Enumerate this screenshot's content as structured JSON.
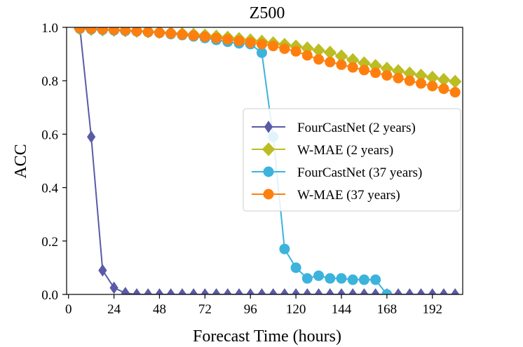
{
  "chart_data": {
    "type": "line",
    "title": "Z500",
    "xlabel": "Forecast Time (hours)",
    "ylabel": "ACC",
    "xlim": [
      -1,
      208
    ],
    "ylim": [
      0.0,
      1.0
    ],
    "xticks": [
      0,
      24,
      48,
      72,
      96,
      120,
      144,
      168,
      192
    ],
    "yticks": [
      0.0,
      0.2,
      0.4,
      0.6,
      0.8,
      1.0
    ],
    "xtick_labels": [
      "0",
      "24",
      "48",
      "72",
      "96",
      "120",
      "144",
      "168",
      "192"
    ],
    "ytick_labels": [
      "0.0",
      "0.2",
      "0.4",
      "0.6",
      "0.8",
      "1.0"
    ],
    "x": [
      6,
      12,
      18,
      24,
      30,
      36,
      42,
      48,
      54,
      60,
      66,
      72,
      78,
      84,
      90,
      96,
      102,
      108,
      114,
      120,
      126,
      132,
      138,
      144,
      150,
      156,
      162,
      168,
      174,
      180,
      186,
      192,
      198,
      204
    ],
    "legend_position": "center-right",
    "series": [
      {
        "name": "FourCastNet (2 years)",
        "color": "#5a5aa6",
        "marker": "diamond-thin",
        "values": [
          1.0,
          0.59,
          0.09,
          0.025,
          0.005,
          0.0,
          0.0,
          0.0,
          0.0,
          0.0,
          0.0,
          0.0,
          0.0,
          0.0,
          0.0,
          0.0,
          0.0,
          0.0,
          0.0,
          0.0,
          0.0,
          0.0,
          0.0,
          0.0,
          0.0,
          0.0,
          0.0,
          0.0,
          0.0,
          0.0,
          0.0,
          0.0,
          0.0,
          0.0
        ]
      },
      {
        "name": "W-MAE (2 years)",
        "color": "#bcbd22",
        "marker": "diamond",
        "values": [
          0.995,
          0.993,
          0.991,
          0.99,
          0.988,
          0.986,
          0.984,
          0.982,
          0.979,
          0.976,
          0.973,
          0.97,
          0.966,
          0.962,
          0.957,
          0.952,
          0.947,
          0.941,
          0.935,
          0.929,
          0.922,
          0.914,
          0.906,
          0.892,
          0.878,
          0.866,
          0.856,
          0.846,
          0.837,
          0.828,
          0.82,
          0.812,
          0.804,
          0.797
        ]
      },
      {
        "name": "FourCastNet (37 years)",
        "color": "#3cb3dc",
        "marker": "circle",
        "values": [
          0.995,
          0.993,
          0.991,
          0.989,
          0.987,
          0.985,
          0.982,
          0.979,
          0.975,
          0.971,
          0.966,
          0.96,
          0.953,
          0.946,
          0.94,
          0.937,
          0.905,
          0.59,
          0.17,
          0.1,
          0.06,
          0.07,
          0.06,
          0.06,
          0.055,
          0.055,
          0.055,
          0.0,
          null,
          null,
          null,
          null,
          null,
          null
        ]
      },
      {
        "name": "W-MAE (37 years)",
        "color": "#ff7f0e",
        "marker": "circle",
        "values": [
          0.997,
          0.995,
          0.993,
          0.991,
          0.989,
          0.986,
          0.983,
          0.98,
          0.977,
          0.973,
          0.969,
          0.965,
          0.96,
          0.955,
          0.949,
          0.943,
          0.937,
          0.93,
          0.92,
          0.91,
          0.895,
          0.88,
          0.87,
          0.86,
          0.85,
          0.84,
          0.83,
          0.82,
          0.81,
          0.8,
          0.79,
          0.78,
          0.77,
          0.757
        ]
      }
    ]
  }
}
